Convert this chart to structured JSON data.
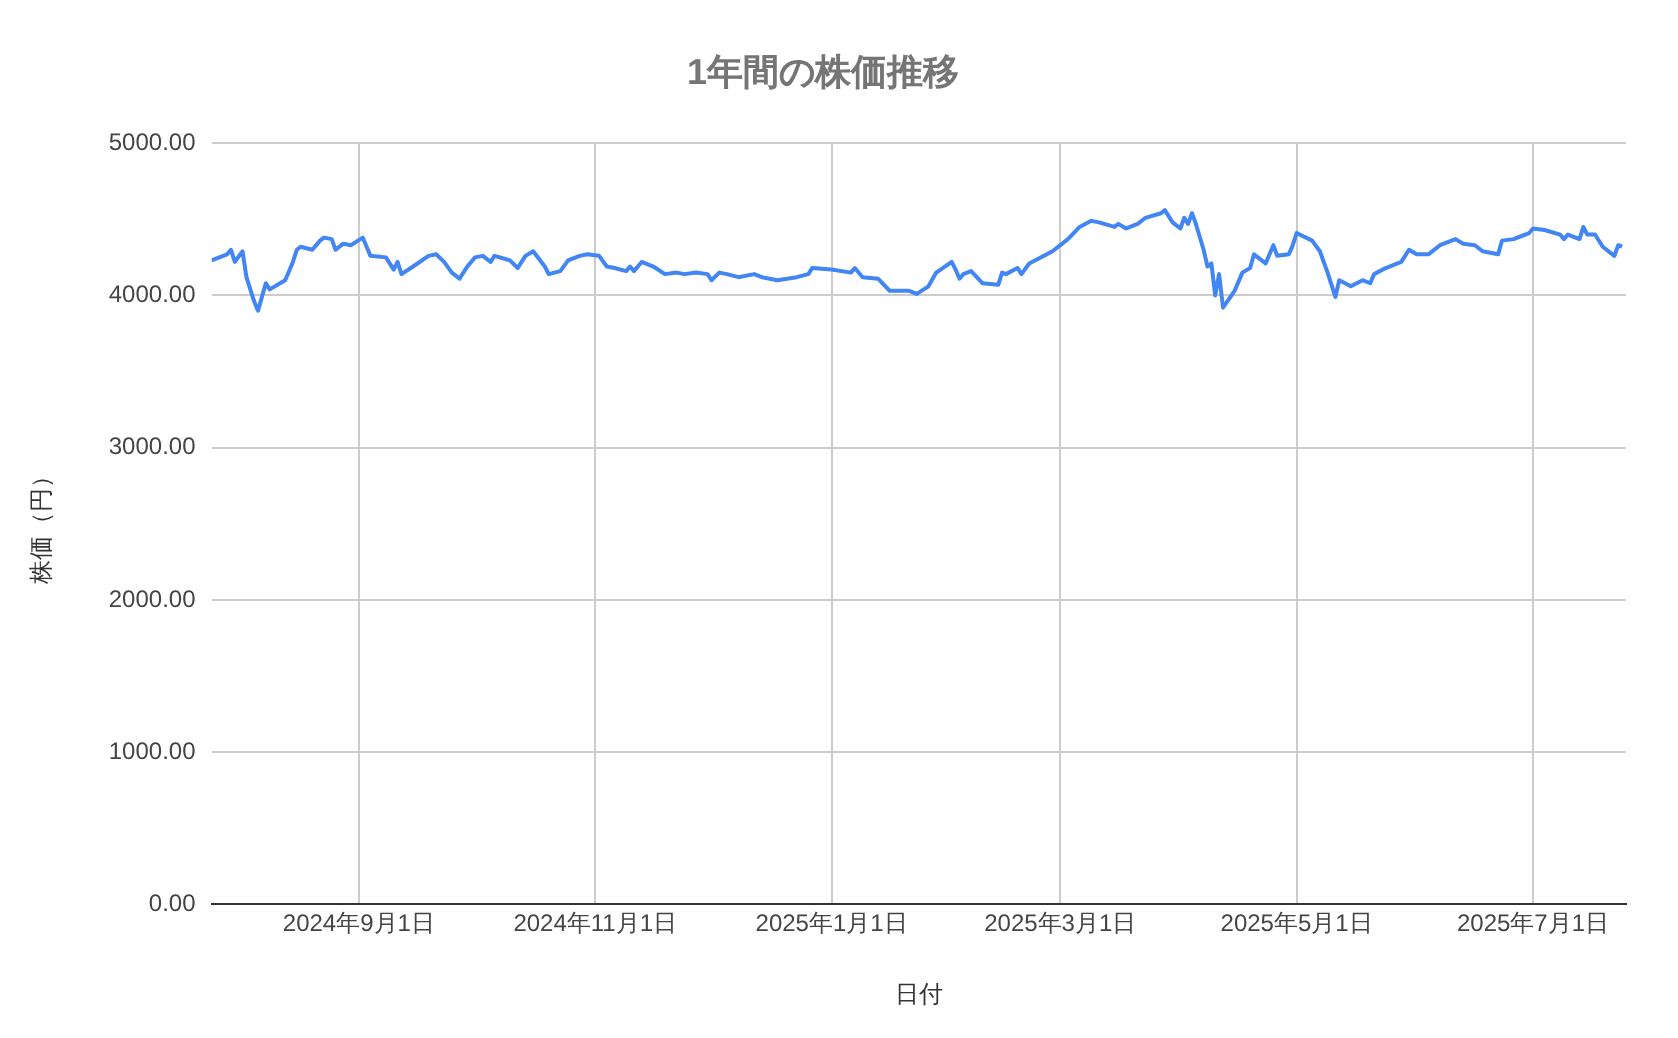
{
  "chart_data": {
    "type": "line",
    "title": "1年間の株価推移",
    "xlabel": "日付",
    "ylabel": "株価（円）",
    "x": [
      "2024-07-25",
      "2024-07-29",
      "2024-07-30",
      "2024-07-31",
      "2024-08-02",
      "2024-08-03",
      "2024-08-05",
      "2024-08-06",
      "2024-08-08",
      "2024-08-09",
      "2024-08-13",
      "2024-08-15",
      "2024-08-16",
      "2024-08-17",
      "2024-08-20",
      "2024-08-22",
      "2024-08-23",
      "2024-08-25",
      "2024-08-26",
      "2024-08-28",
      "2024-08-30",
      "2024-09-02",
      "2024-09-04",
      "2024-09-08",
      "2024-09-10",
      "2024-09-11",
      "2024-09-12",
      "2024-09-15",
      "2024-09-19",
      "2024-09-21",
      "2024-09-23",
      "2024-09-25",
      "2024-09-27",
      "2024-09-29",
      "2024-10-01",
      "2024-10-03",
      "2024-10-05",
      "2024-10-06",
      "2024-10-10",
      "2024-10-12",
      "2024-10-14",
      "2024-10-16",
      "2024-10-19",
      "2024-10-20",
      "2024-10-23",
      "2024-10-25",
      "2024-10-28",
      "2024-10-30",
      "2024-11-02",
      "2024-11-04",
      "2024-11-06",
      "2024-11-09",
      "2024-11-10",
      "2024-11-11",
      "2024-11-13",
      "2024-11-16",
      "2024-11-19",
      "2024-11-22",
      "2024-11-24",
      "2024-11-27",
      "2024-11-30",
      "2024-12-01",
      "2024-12-03",
      "2024-12-05",
      "2024-12-08",
      "2024-12-12",
      "2024-12-14",
      "2024-12-18",
      "2024-12-23",
      "2024-12-26",
      "2024-12-27",
      "2025-01-01",
      "2025-01-06",
      "2025-01-07",
      "2025-01-09",
      "2025-01-13",
      "2025-01-16",
      "2025-01-21",
      "2025-01-23",
      "2025-01-26",
      "2025-01-28",
      "2025-02-01",
      "2025-02-02",
      "2025-02-03",
      "2025-02-04",
      "2025-02-06",
      "2025-02-09",
      "2025-02-13",
      "2025-02-14",
      "2025-02-15",
      "2025-02-18",
      "2025-02-19",
      "2025-02-21",
      "2025-02-27",
      "2025-03-03",
      "2025-03-06",
      "2025-03-09",
      "2025-03-11",
      "2025-03-15",
      "2025-03-16",
      "2025-03-18",
      "2025-03-21",
      "2025-03-23",
      "2025-03-27",
      "2025-03-28",
      "2025-03-30",
      "2025-04-01",
      "2025-04-02",
      "2025-04-03",
      "2025-04-04",
      "2025-04-05",
      "2025-04-07",
      "2025-04-08",
      "2025-04-09",
      "2025-04-10",
      "2025-04-11",
      "2025-04-12",
      "2025-04-15",
      "2025-04-17",
      "2025-04-19",
      "2025-04-20",
      "2025-04-22",
      "2025-04-23",
      "2025-04-25",
      "2025-04-26",
      "2025-04-29",
      "2025-04-30",
      "2025-05-01",
      "2025-05-05",
      "2025-05-07",
      "2025-05-09",
      "2025-05-10",
      "2025-05-11",
      "2025-05-12",
      "2025-05-15",
      "2025-05-18",
      "2025-05-20",
      "2025-05-21",
      "2025-05-24",
      "2025-05-28",
      "2025-05-30",
      "2025-06-01",
      "2025-06-04",
      "2025-06-07",
      "2025-06-11",
      "2025-06-13",
      "2025-06-16",
      "2025-06-18",
      "2025-06-22",
      "2025-06-23",
      "2025-06-26",
      "2025-06-30",
      "2025-07-01",
      "2025-07-04",
      "2025-07-08",
      "2025-07-09",
      "2025-07-10",
      "2025-07-13",
      "2025-07-14",
      "2025-07-15",
      "2025-07-17",
      "2025-07-19",
      "2025-07-22",
      "2025-07-23",
      "2025-07-24"
    ],
    "series": [
      {
        "color": "#4285f4",
        "values": [
          4230,
          4270,
          4300,
          4220,
          4290,
          4120,
          3960,
          3900,
          4080,
          4040,
          4100,
          4220,
          4300,
          4320,
          4300,
          4360,
          4380,
          4370,
          4300,
          4340,
          4330,
          4380,
          4260,
          4250,
          4170,
          4220,
          4140,
          4190,
          4260,
          4270,
          4220,
          4150,
          4110,
          4190,
          4250,
          4260,
          4220,
          4260,
          4230,
          4180,
          4260,
          4290,
          4190,
          4140,
          4160,
          4230,
          4260,
          4270,
          4260,
          4190,
          4180,
          4160,
          4190,
          4160,
          4220,
          4190,
          4140,
          4150,
          4140,
          4150,
          4140,
          4100,
          4150,
          4140,
          4120,
          4140,
          4120,
          4100,
          4120,
          4140,
          4180,
          4170,
          4150,
          4180,
          4120,
          4110,
          4030,
          4030,
          4010,
          4060,
          4150,
          4220,
          4170,
          4110,
          4140,
          4160,
          4080,
          4070,
          4150,
          4140,
          4180,
          4140,
          4210,
          4290,
          4370,
          4450,
          4490,
          4480,
          4450,
          4470,
          4440,
          4470,
          4510,
          4540,
          4560,
          4480,
          4440,
          4510,
          4470,
          4540,
          4470,
          4300,
          4190,
          4210,
          4000,
          4140,
          3920,
          4030,
          4150,
          4180,
          4270,
          4230,
          4210,
          4330,
          4260,
          4270,
          4330,
          4410,
          4360,
          4290,
          4150,
          4070,
          3990,
          4100,
          4060,
          4100,
          4080,
          4140,
          4180,
          4220,
          4300,
          4270,
          4270,
          4330,
          4370,
          4340,
          4330,
          4290,
          4270,
          4360,
          4370,
          4410,
          4440,
          4430,
          4400,
          4370,
          4400,
          4370,
          4450,
          4400,
          4400,
          4320,
          4260,
          4330,
          4320
        ]
      }
    ],
    "xlim": [
      "2024-07-25",
      "2025-07-25"
    ],
    "xticks": [
      {
        "value": "2024-09-01",
        "label": "2024年9月1日"
      },
      {
        "value": "2024-11-01",
        "label": "2024年11月1日"
      },
      {
        "value": "2025-01-01",
        "label": "2025年1月1日"
      },
      {
        "value": "2025-03-01",
        "label": "2025年3月1日"
      },
      {
        "value": "2025-05-01",
        "label": "2025年5月1日"
      },
      {
        "value": "2025-07-01",
        "label": "2025年7月1日"
      }
    ],
    "ylim": [
      0,
      5000
    ],
    "yticks": [
      {
        "value": 0,
        "label": "0.00"
      },
      {
        "value": 1000,
        "label": "1000.00"
      },
      {
        "value": 2000,
        "label": "2000.00"
      },
      {
        "value": 3000,
        "label": "3000.00"
      },
      {
        "value": 4000,
        "label": "4000.00"
      },
      {
        "value": 5000,
        "label": "5000.00"
      }
    ],
    "grid": true,
    "marker": "none",
    "line_style": "solid"
  }
}
